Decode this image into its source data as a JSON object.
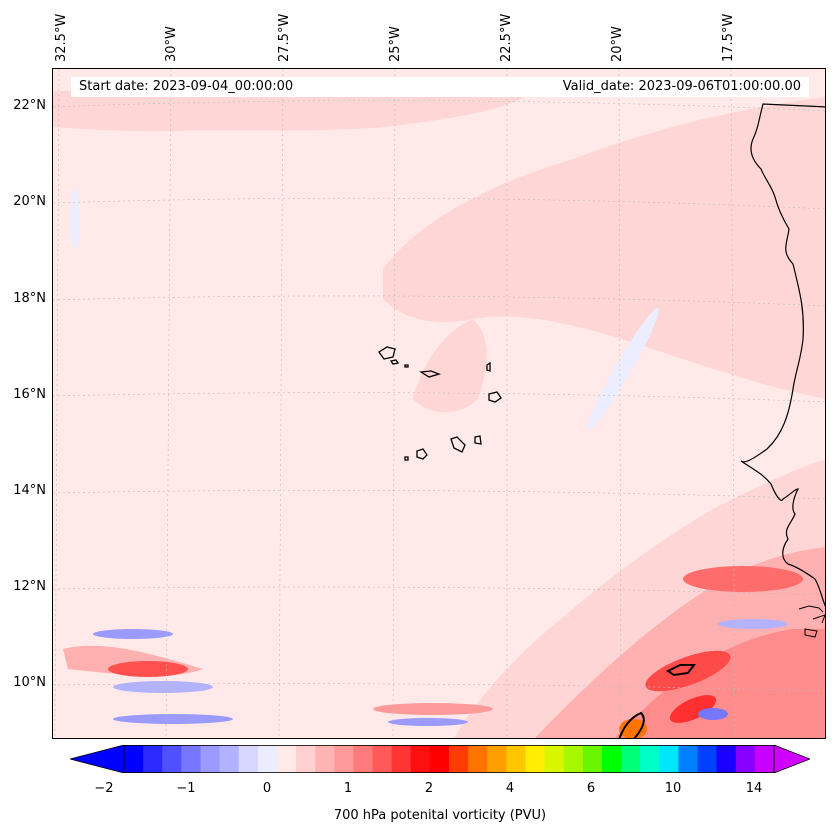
{
  "header": {
    "start_date": "Start date: 2023-09-04_00:00:00",
    "valid_date": "Valid_date: 2023-09-06T01:00:00.00"
  },
  "lon_labels": [
    "32.5°W",
    "30°W",
    "27.5°W",
    "25°W",
    "22.5°W",
    "20°W",
    "17.5°W"
  ],
  "lat_labels": [
    "22°N",
    "20°N",
    "18°N",
    "16°N",
    "14°N",
    "12°N",
    "10°N"
  ],
  "colorbar": {
    "title": "700 hPa potenital vorticity (PVU)",
    "ticks": [
      "−2",
      "−1",
      "0",
      "1",
      "2",
      "4",
      "6",
      "10",
      "14"
    ],
    "colors": [
      "#0000ff",
      "#2a2aff",
      "#5050ff",
      "#7676ff",
      "#9a9aff",
      "#b2b2ff",
      "#d6d6ff",
      "#ececff",
      "#ffe9e9",
      "#ffd0d0",
      "#ffb4b4",
      "#ff9a9a",
      "#ff7a7a",
      "#ff5a5a",
      "#ff3434",
      "#ff1010",
      "#ff0000",
      "#ff3c00",
      "#ff7400",
      "#ff9e00",
      "#ffc600",
      "#ffee00",
      "#d8f600",
      "#a8f600",
      "#6af600",
      "#00ff00",
      "#00ff78",
      "#00ffc8",
      "#00e6ff",
      "#0080ff",
      "#0040ff",
      "#1a00ff",
      "#8800ff",
      "#c800ff"
    ],
    "under_color": "#0000ff",
    "over_color": "#d000ff"
  },
  "map_colors": {
    "ocean_base": "#ffe9e9",
    "light_pink": "#ffd6d6",
    "pink": "#ffb0b0",
    "red": "#ff5050",
    "light_blue": "#eceeff",
    "blue": "#9a9aff"
  }
}
